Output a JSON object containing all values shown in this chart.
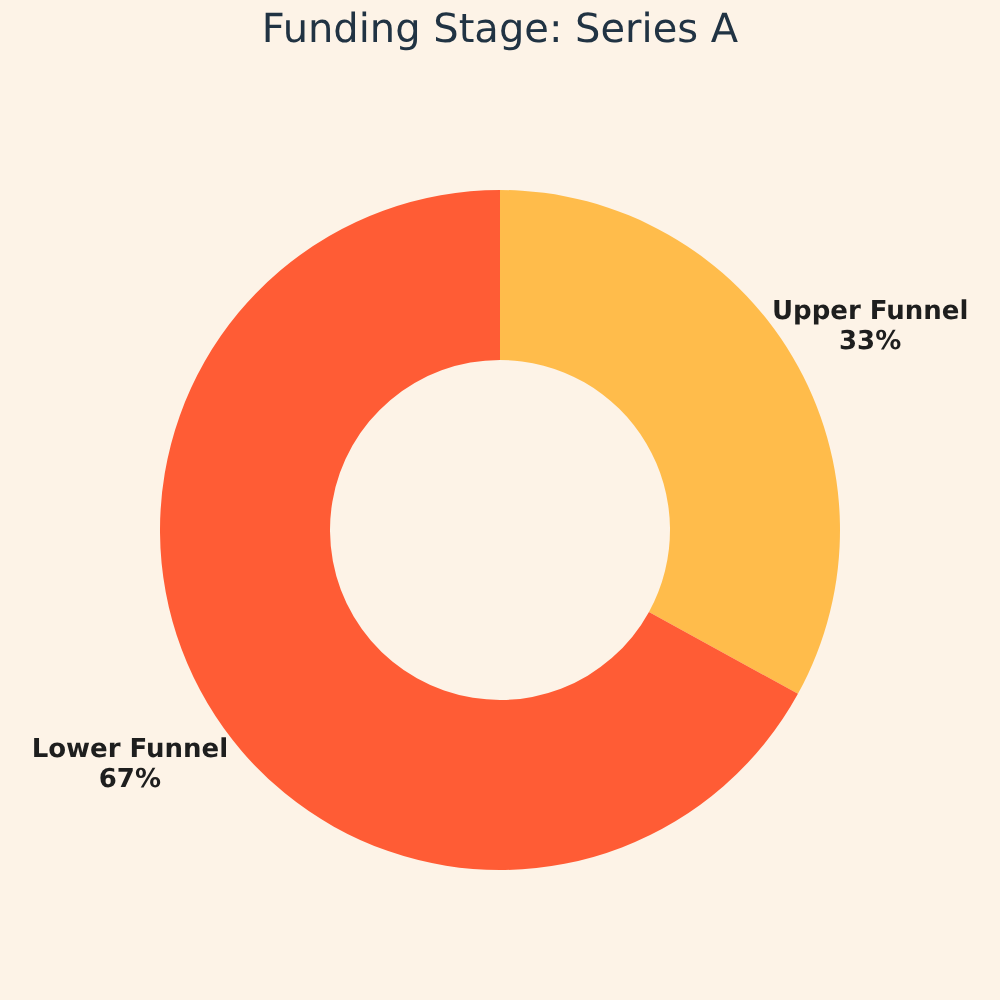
{
  "chart_data": {
    "type": "donut",
    "title": "Funding Stage: Series A",
    "categories": [
      "Upper Funnel",
      "Lower Funnel"
    ],
    "values": [
      33,
      67
    ],
    "value_labels": [
      "33%",
      "67%"
    ],
    "colors": [
      "#ffbc4b",
      "#ff5c35"
    ],
    "legend": false
  }
}
